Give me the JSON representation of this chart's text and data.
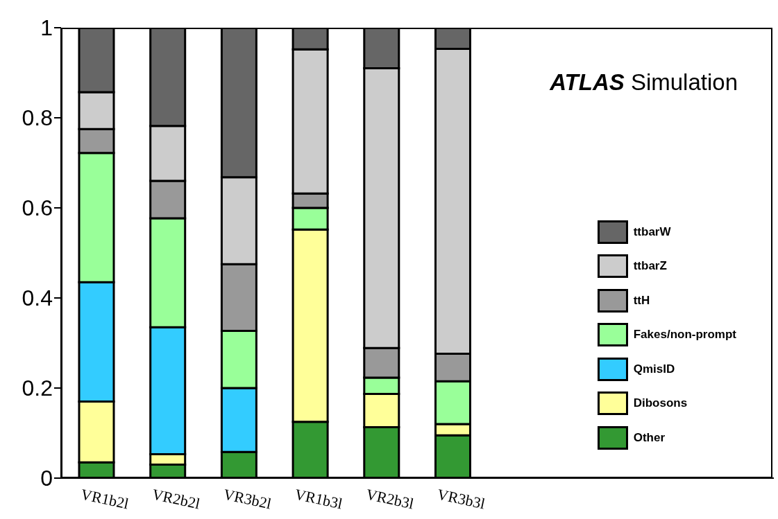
{
  "chart_data": {
    "type": "bar",
    "stacked": true,
    "categories": [
      "VR1b2l",
      "VR2b2l",
      "VR3b2l",
      "VR1b3l",
      "VR2b3l",
      "VR3b3l",
      null,
      null,
      null,
      null
    ],
    "series": [
      {
        "name": "Other",
        "color": "#339933",
        "values": [
          0.035,
          0.03,
          0.058,
          0.125,
          0.113,
          0.095,
          null,
          null,
          null,
          null
        ]
      },
      {
        "name": "Dibosons",
        "color": "#ffff99",
        "values": [
          0.135,
          0.023,
          0,
          0.427,
          0.074,
          0.025,
          null,
          null,
          null,
          null
        ]
      },
      {
        "name": "QmisID",
        "color": "#33ccff",
        "values": [
          0.265,
          0.282,
          0.142,
          0,
          0,
          0,
          null,
          null,
          null,
          null
        ]
      },
      {
        "name": "Fakes/non-prompt",
        "color": "#99ff99",
        "values": [
          0.287,
          0.242,
          0.127,
          0.048,
          0.036,
          0.095,
          null,
          null,
          null,
          null
        ]
      },
      {
        "name": "ttH",
        "color": "#999999",
        "values": [
          0.053,
          0.083,
          0.148,
          0.032,
          0.066,
          0.061,
          null,
          null,
          null,
          null
        ]
      },
      {
        "name": "ttbarZ",
        "color": "#cccccc",
        "values": [
          0.082,
          0.122,
          0.193,
          0.32,
          0.621,
          0.677,
          null,
          null,
          null,
          null
        ]
      },
      {
        "name": "ttbarW",
        "color": "#666666",
        "values": [
          0.143,
          0.218,
          0.332,
          0.048,
          0.09,
          0.047,
          null,
          null,
          null,
          null
        ]
      }
    ],
    "ylim": [
      0,
      1
    ],
    "yticks": [
      0,
      0.2,
      0.4,
      0.6,
      0.8,
      1
    ],
    "grid": false,
    "legend": "right",
    "annotations": [
      "ATLAS Simulation"
    ]
  }
}
